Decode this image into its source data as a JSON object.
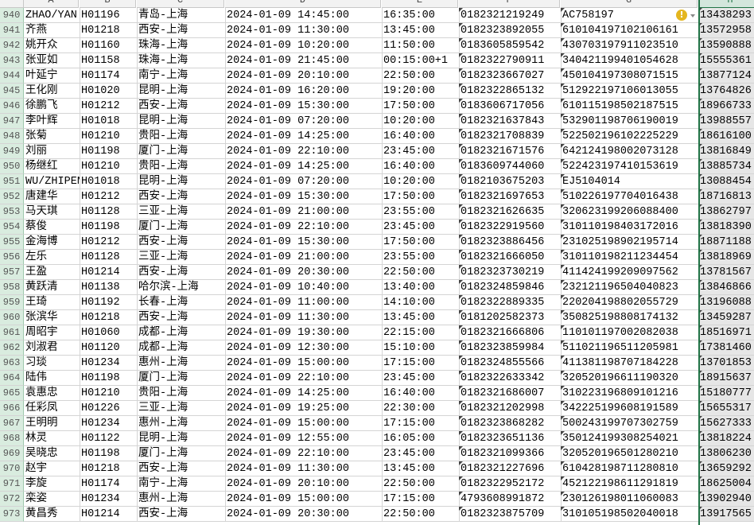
{
  "columns": [
    "A",
    "B",
    "C",
    "D",
    "E",
    "F",
    "G",
    "H"
  ],
  "selected_column": "H",
  "accent_color": "#217346",
  "warning_icon": "warning-icon",
  "rows": [
    {
      "n": "940",
      "a": "ZHAO/YAN",
      "b": "H01196",
      "c": "青岛-上海",
      "d": "2024-01-09 14:45:00",
      "e": "16:35:00",
      "f": "0182321219249",
      "g": "AC758197",
      "h": "13438293"
    },
    {
      "n": "941",
      "a": "齐燕",
      "b": "H01218",
      "c": "西安-上海",
      "d": "2024-01-09 11:30:00",
      "e": "13:45:00",
      "f": "0182323892055",
      "g": "610104197102106161",
      "h": "13572958"
    },
    {
      "n": "942",
      "a": "姚开众",
      "b": "H01160",
      "c": "珠海-上海",
      "d": "2024-01-09 10:20:00",
      "e": "11:50:00",
      "f": "0183605859542",
      "g": "430703197911023510",
      "h": "13590888"
    },
    {
      "n": "943",
      "a": "张亚如",
      "b": "H01158",
      "c": "珠海-上海",
      "d": "2024-01-09 21:45:00",
      "e": "00:15:00+1",
      "f": "0182322790911",
      "g": "340421199401054628",
      "h": "15555361"
    },
    {
      "n": "944",
      "a": "叶延宁",
      "b": "H01174",
      "c": "南宁-上海",
      "d": "2024-01-09 20:10:00",
      "e": "22:50:00",
      "f": "0182323667027",
      "g": "450104197308071515",
      "h": "13877124"
    },
    {
      "n": "945",
      "a": "王化刚",
      "b": "H01020",
      "c": "昆明-上海",
      "d": "2024-01-09 16:20:00",
      "e": "19:20:00",
      "f": "0182322865132",
      "g": "512922197106013055",
      "h": "13764826"
    },
    {
      "n": "946",
      "a": "徐鹏飞",
      "b": "H01212",
      "c": "西安-上海",
      "d": "2024-01-09 15:30:00",
      "e": "17:50:00",
      "f": "0183606717056",
      "g": "610115198502187515",
      "h": "18966733"
    },
    {
      "n": "947",
      "a": "李叶辉",
      "b": "H01018",
      "c": "昆明-上海",
      "d": "2024-01-09 07:20:00",
      "e": "10:20:00",
      "f": "0182321637843",
      "g": "532901198706190019",
      "h": "13988557"
    },
    {
      "n": "948",
      "a": "张菊",
      "b": "H01210",
      "c": "贵阳-上海",
      "d": "2024-01-09 14:25:00",
      "e": "16:40:00",
      "f": "0182321708839",
      "g": "522502196102225229",
      "h": "18616100"
    },
    {
      "n": "949",
      "a": "刘丽",
      "b": "H01198",
      "c": "厦门-上海",
      "d": "2024-01-09 22:10:00",
      "e": "23:45:00",
      "f": "0182321671576",
      "g": "642124198002073128",
      "h": "13816849"
    },
    {
      "n": "950",
      "a": "杨继红",
      "b": "H01210",
      "c": "贵阳-上海",
      "d": "2024-01-09 14:25:00",
      "e": "16:40:00",
      "f": "0183609744060",
      "g": "522423197410153619",
      "h": "13885734"
    },
    {
      "n": "951",
      "a": "WU/ZHIPEN",
      "b": "H01018",
      "c": "昆明-上海",
      "d": "2024-01-09 07:20:00",
      "e": "10:20:00",
      "f": "0182103675203",
      "g": "EJ5104014",
      "h": "13088454"
    },
    {
      "n": "952",
      "a": "唐建华",
      "b": "H01212",
      "c": "西安-上海",
      "d": "2024-01-09 15:30:00",
      "e": "17:50:00",
      "f": "0182321697653",
      "g": "510226197704016438",
      "h": "18716813"
    },
    {
      "n": "953",
      "a": "马天琪",
      "b": "H01128",
      "c": "三亚-上海",
      "d": "2024-01-09 21:00:00",
      "e": "23:55:00",
      "f": "0182321626635",
      "g": "320623199206088400",
      "h": "13862797"
    },
    {
      "n": "954",
      "a": "蔡俊",
      "b": "H01198",
      "c": "厦门-上海",
      "d": "2024-01-09 22:10:00",
      "e": "23:45:00",
      "f": "0182322919560",
      "g": "310110198403172016",
      "h": "13818390"
    },
    {
      "n": "955",
      "a": "金海博",
      "b": "H01212",
      "c": "西安-上海",
      "d": "2024-01-09 15:30:00",
      "e": "17:50:00",
      "f": "0182323886456",
      "g": "231025198902195714",
      "h": "18871188"
    },
    {
      "n": "956",
      "a": "左乐",
      "b": "H01128",
      "c": "三亚-上海",
      "d": "2024-01-09 21:00:00",
      "e": "23:55:00",
      "f": "0182321666050",
      "g": "310110198211234454",
      "h": "13818969"
    },
    {
      "n": "957",
      "a": "王盈",
      "b": "H01214",
      "c": "西安-上海",
      "d": "2024-01-09 20:30:00",
      "e": "22:50:00",
      "f": "0182323730219",
      "g": "411424199209097562",
      "h": "13781567"
    },
    {
      "n": "958",
      "a": "黄跃清",
      "b": "H01138",
      "c": "哈尔滨-上海",
      "d": "2024-01-09 10:40:00",
      "e": "13:40:00",
      "f": "0182324859846",
      "g": "232121196504040823",
      "h": "13846866"
    },
    {
      "n": "959",
      "a": "王琦",
      "b": "H01192",
      "c": "长春-上海",
      "d": "2024-01-09 11:00:00",
      "e": "14:10:00",
      "f": "0182322889335",
      "g": "220204198802055729",
      "h": "13196088"
    },
    {
      "n": "960",
      "a": "张滨华",
      "b": "H01218",
      "c": "西安-上海",
      "d": "2024-01-09 11:30:00",
      "e": "13:45:00",
      "f": "0181202582373",
      "g": "350825198808174132",
      "h": "13459287"
    },
    {
      "n": "961",
      "a": "周昭宇",
      "b": "H01060",
      "c": "成都-上海",
      "d": "2024-01-09 19:30:00",
      "e": "22:15:00",
      "f": "0182321666806",
      "g": "110101197002082038",
      "h": "18516971"
    },
    {
      "n": "962",
      "a": "刘淑君",
      "b": "H01120",
      "c": "成都-上海",
      "d": "2024-01-09 12:30:00",
      "e": "15:10:00",
      "f": "0182323859984",
      "g": "511021196511205981",
      "h": "17381460"
    },
    {
      "n": "963",
      "a": "习琰",
      "b": "H01234",
      "c": "惠州-上海",
      "d": "2024-01-09 15:00:00",
      "e": "17:15:00",
      "f": "0182324855566",
      "g": "411381198707184228",
      "h": "13701853"
    },
    {
      "n": "964",
      "a": "陆伟",
      "b": "H01198",
      "c": "厦门-上海",
      "d": "2024-01-09 22:10:00",
      "e": "23:45:00",
      "f": "0182322633342",
      "g": "320520196611190320",
      "h": "18915637"
    },
    {
      "n": "965",
      "a": "袁惠忠",
      "b": "H01210",
      "c": "贵阳-上海",
      "d": "2024-01-09 14:25:00",
      "e": "16:40:00",
      "f": "0182321686007",
      "g": "310223196809101216",
      "h": "15180777"
    },
    {
      "n": "966",
      "a": "任彩凤",
      "b": "H01226",
      "c": "三亚-上海",
      "d": "2024-01-09 19:25:00",
      "e": "22:30:00",
      "f": "0182321202998",
      "g": "342225199608191589",
      "h": "15655317"
    },
    {
      "n": "967",
      "a": "王明明",
      "b": "H01234",
      "c": "惠州-上海",
      "d": "2024-01-09 15:00:00",
      "e": "17:15:00",
      "f": "0182323868282",
      "g": "500243199707302759",
      "h": "15627333"
    },
    {
      "n": "968",
      "a": "林灵",
      "b": "H01122",
      "c": "昆明-上海",
      "d": "2024-01-09 12:55:00",
      "e": "16:05:00",
      "f": "0182323651136",
      "g": "350124199308254021",
      "h": "13818224"
    },
    {
      "n": "969",
      "a": "吴晓忠",
      "b": "H01198",
      "c": "厦门-上海",
      "d": "2024-01-09 22:10:00",
      "e": "23:45:00",
      "f": "0182321099366",
      "g": "320520196501280210",
      "h": "13806230"
    },
    {
      "n": "970",
      "a": "赵宇",
      "b": "H01218",
      "c": "西安-上海",
      "d": "2024-01-09 11:30:00",
      "e": "13:45:00",
      "f": "0182321227696",
      "g": "610428198711280810",
      "h": "13659292"
    },
    {
      "n": "971",
      "a": "李旋",
      "b": "H01174",
      "c": "南宁-上海",
      "d": "2024-01-09 20:10:00",
      "e": "22:50:00",
      "f": "0182322952172",
      "g": "452122198611291819",
      "h": "18625004"
    },
    {
      "n": "972",
      "a": "栾姿",
      "b": "H01234",
      "c": "惠州-上海",
      "d": "2024-01-09 15:00:00",
      "e": "17:15:00",
      "f": "4793608991872",
      "g": "230126198011060083",
      "h": "13902940"
    },
    {
      "n": "973",
      "a": "黄昌秀",
      "b": "H01214",
      "c": "西安-上海",
      "d": "2024-01-09 20:30:00",
      "e": "22:50:00",
      "f": "0182323875709",
      "g": "310105198502040018",
      "h": "13917565"
    }
  ]
}
